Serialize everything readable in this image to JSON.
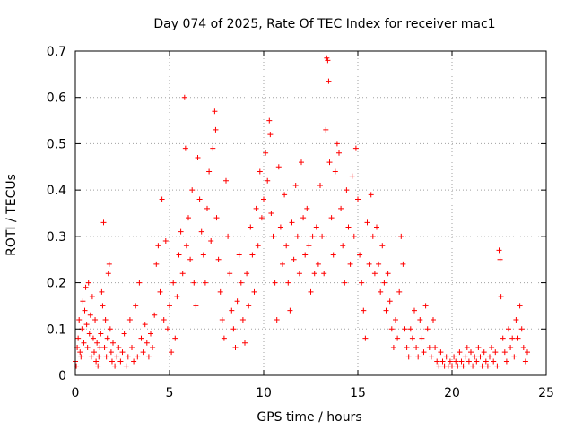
{
  "chart_data": {
    "type": "scatter",
    "title": "Day 074 of 2025, Rate Of TEC Index for receiver mac1",
    "xlabel": "GPS time / hours",
    "ylabel": "ROTI / TECUs",
    "xlim": [
      0,
      25
    ],
    "ylim": [
      0,
      0.7
    ],
    "x_ticks": [
      0,
      5,
      10,
      15,
      20,
      25
    ],
    "y_ticks": [
      0,
      0.1,
      0.2,
      0.3,
      0.4,
      0.5,
      0.6,
      0.7
    ],
    "x_tick_labels": [
      "0",
      "5",
      "10",
      "15",
      "20",
      "25"
    ],
    "y_tick_labels": [
      "0",
      "0.1",
      "0.2",
      "0.3",
      "0.4",
      "0.5",
      "0.6",
      "0.7"
    ],
    "grid": true,
    "marker": "plus",
    "series_color": "#ff0000",
    "points": [
      [
        0.0,
        0.03
      ],
      [
        0.05,
        0.02
      ],
      [
        0.1,
        0.06
      ],
      [
        0.15,
        0.08
      ],
      [
        0.2,
        0.12
      ],
      [
        0.25,
        0.05
      ],
      [
        0.3,
        0.04
      ],
      [
        0.35,
        0.1
      ],
      [
        0.4,
        0.16
      ],
      [
        0.45,
        0.07
      ],
      [
        0.5,
        0.14
      ],
      [
        0.55,
        0.19
      ],
      [
        0.6,
        0.11
      ],
      [
        0.65,
        0.06
      ],
      [
        0.7,
        0.2
      ],
      [
        0.75,
        0.09
      ],
      [
        0.8,
        0.13
      ],
      [
        0.85,
        0.04
      ],
      [
        0.9,
        0.17
      ],
      [
        0.95,
        0.08
      ],
      [
        1.0,
        0.05
      ],
      [
        1.05,
        0.12
      ],
      [
        1.1,
        0.03
      ],
      [
        1.15,
        0.07
      ],
      [
        1.2,
        0.02
      ],
      [
        1.25,
        0.04
      ],
      [
        1.3,
        0.06
      ],
      [
        1.35,
        0.09
      ],
      [
        1.4,
        0.18
      ],
      [
        1.45,
        0.15
      ],
      [
        1.5,
        0.33
      ],
      [
        1.55,
        0.06
      ],
      [
        1.6,
        0.12
      ],
      [
        1.65,
        0.04
      ],
      [
        1.7,
        0.08
      ],
      [
        1.75,
        0.22
      ],
      [
        1.8,
        0.24
      ],
      [
        1.85,
        0.1
      ],
      [
        1.9,
        0.05
      ],
      [
        1.95,
        0.03
      ],
      [
        2.0,
        0.07
      ],
      [
        2.1,
        0.02
      ],
      [
        2.2,
        0.04
      ],
      [
        2.3,
        0.06
      ],
      [
        2.4,
        0.03
      ],
      [
        2.5,
        0.05
      ],
      [
        2.6,
        0.09
      ],
      [
        2.7,
        0.02
      ],
      [
        2.8,
        0.04
      ],
      [
        2.9,
        0.12
      ],
      [
        3.0,
        0.06
      ],
      [
        3.1,
        0.03
      ],
      [
        3.2,
        0.15
      ],
      [
        3.3,
        0.04
      ],
      [
        3.4,
        0.2
      ],
      [
        3.5,
        0.08
      ],
      [
        3.6,
        0.05
      ],
      [
        3.7,
        0.11
      ],
      [
        3.8,
        0.07
      ],
      [
        3.9,
        0.04
      ],
      [
        4.0,
        0.09
      ],
      [
        4.1,
        0.06
      ],
      [
        4.2,
        0.13
      ],
      [
        4.3,
        0.24
      ],
      [
        4.4,
        0.28
      ],
      [
        4.5,
        0.18
      ],
      [
        4.6,
        0.38
      ],
      [
        4.7,
        0.12
      ],
      [
        4.8,
        0.29
      ],
      [
        4.9,
        0.1
      ],
      [
        5.0,
        0.15
      ],
      [
        5.1,
        0.05
      ],
      [
        5.2,
        0.2
      ],
      [
        5.3,
        0.08
      ],
      [
        5.4,
        0.17
      ],
      [
        5.5,
        0.26
      ],
      [
        5.6,
        0.31
      ],
      [
        5.7,
        0.22
      ],
      [
        5.8,
        0.6
      ],
      [
        5.85,
        0.49
      ],
      [
        5.9,
        0.28
      ],
      [
        6.0,
        0.34
      ],
      [
        6.1,
        0.25
      ],
      [
        6.2,
        0.4
      ],
      [
        6.3,
        0.2
      ],
      [
        6.4,
        0.15
      ],
      [
        6.5,
        0.47
      ],
      [
        6.6,
        0.38
      ],
      [
        6.7,
        0.31
      ],
      [
        6.8,
        0.26
      ],
      [
        6.9,
        0.2
      ],
      [
        7.0,
        0.36
      ],
      [
        7.1,
        0.44
      ],
      [
        7.2,
        0.29
      ],
      [
        7.3,
        0.49
      ],
      [
        7.4,
        0.57
      ],
      [
        7.45,
        0.53
      ],
      [
        7.5,
        0.34
      ],
      [
        7.6,
        0.25
      ],
      [
        7.7,
        0.18
      ],
      [
        7.8,
        0.12
      ],
      [
        7.9,
        0.08
      ],
      [
        8.0,
        0.42
      ],
      [
        8.1,
        0.3
      ],
      [
        8.2,
        0.22
      ],
      [
        8.3,
        0.14
      ],
      [
        8.4,
        0.1
      ],
      [
        8.5,
        0.06
      ],
      [
        8.6,
        0.16
      ],
      [
        8.7,
        0.26
      ],
      [
        8.8,
        0.2
      ],
      [
        8.9,
        0.12
      ],
      [
        9.0,
        0.07
      ],
      [
        9.1,
        0.22
      ],
      [
        9.2,
        0.15
      ],
      [
        9.3,
        0.32
      ],
      [
        9.4,
        0.26
      ],
      [
        9.5,
        0.18
      ],
      [
        9.6,
        0.36
      ],
      [
        9.7,
        0.28
      ],
      [
        9.8,
        0.44
      ],
      [
        9.9,
        0.34
      ],
      [
        10.0,
        0.38
      ],
      [
        10.1,
        0.48
      ],
      [
        10.2,
        0.42
      ],
      [
        10.3,
        0.55
      ],
      [
        10.35,
        0.52
      ],
      [
        10.4,
        0.35
      ],
      [
        10.5,
        0.3
      ],
      [
        10.6,
        0.2
      ],
      [
        10.7,
        0.12
      ],
      [
        10.8,
        0.45
      ],
      [
        10.9,
        0.32
      ],
      [
        11.0,
        0.24
      ],
      [
        11.1,
        0.39
      ],
      [
        11.2,
        0.28
      ],
      [
        11.3,
        0.2
      ],
      [
        11.4,
        0.14
      ],
      [
        11.5,
        0.33
      ],
      [
        11.6,
        0.25
      ],
      [
        11.7,
        0.41
      ],
      [
        11.8,
        0.3
      ],
      [
        11.9,
        0.22
      ],
      [
        12.0,
        0.46
      ],
      [
        12.1,
        0.34
      ],
      [
        12.2,
        0.26
      ],
      [
        12.3,
        0.36
      ],
      [
        12.4,
        0.28
      ],
      [
        12.5,
        0.18
      ],
      [
        12.6,
        0.3
      ],
      [
        12.7,
        0.22
      ],
      [
        12.8,
        0.32
      ],
      [
        12.9,
        0.24
      ],
      [
        13.0,
        0.41
      ],
      [
        13.1,
        0.3
      ],
      [
        13.2,
        0.22
      ],
      [
        13.3,
        0.53
      ],
      [
        13.35,
        0.685
      ],
      [
        13.4,
        0.68
      ],
      [
        13.45,
        0.635
      ],
      [
        13.5,
        0.46
      ],
      [
        13.6,
        0.34
      ],
      [
        13.7,
        0.26
      ],
      [
        13.8,
        0.44
      ],
      [
        13.9,
        0.5
      ],
      [
        14.0,
        0.48
      ],
      [
        14.1,
        0.36
      ],
      [
        14.2,
        0.28
      ],
      [
        14.3,
        0.2
      ],
      [
        14.4,
        0.4
      ],
      [
        14.5,
        0.32
      ],
      [
        14.6,
        0.24
      ],
      [
        14.7,
        0.43
      ],
      [
        14.8,
        0.3
      ],
      [
        14.9,
        0.49
      ],
      [
        15.0,
        0.38
      ],
      [
        15.1,
        0.26
      ],
      [
        15.2,
        0.2
      ],
      [
        15.3,
        0.14
      ],
      [
        15.4,
        0.08
      ],
      [
        15.5,
        0.33
      ],
      [
        15.6,
        0.24
      ],
      [
        15.7,
        0.39
      ],
      [
        15.8,
        0.3
      ],
      [
        15.9,
        0.22
      ],
      [
        16.0,
        0.32
      ],
      [
        16.1,
        0.24
      ],
      [
        16.2,
        0.18
      ],
      [
        16.3,
        0.28
      ],
      [
        16.4,
        0.2
      ],
      [
        16.5,
        0.14
      ],
      [
        16.6,
        0.22
      ],
      [
        16.7,
        0.16
      ],
      [
        16.8,
        0.1
      ],
      [
        16.9,
        0.06
      ],
      [
        17.0,
        0.12
      ],
      [
        17.1,
        0.08
      ],
      [
        17.2,
        0.18
      ],
      [
        17.3,
        0.3
      ],
      [
        17.4,
        0.24
      ],
      [
        17.5,
        0.1
      ],
      [
        17.6,
        0.06
      ],
      [
        17.7,
        0.04
      ],
      [
        17.8,
        0.1
      ],
      [
        17.9,
        0.08
      ],
      [
        18.0,
        0.14
      ],
      [
        18.1,
        0.06
      ],
      [
        18.2,
        0.04
      ],
      [
        18.3,
        0.12
      ],
      [
        18.4,
        0.08
      ],
      [
        18.5,
        0.05
      ],
      [
        18.6,
        0.15
      ],
      [
        18.7,
        0.1
      ],
      [
        18.8,
        0.06
      ],
      [
        18.9,
        0.04
      ],
      [
        19.0,
        0.12
      ],
      [
        19.1,
        0.06
      ],
      [
        19.2,
        0.03
      ],
      [
        19.3,
        0.02
      ],
      [
        19.4,
        0.05
      ],
      [
        19.5,
        0.03
      ],
      [
        19.6,
        0.02
      ],
      [
        19.7,
        0.04
      ],
      [
        19.8,
        0.02
      ],
      [
        19.9,
        0.03
      ],
      [
        20.0,
        0.02
      ],
      [
        20.1,
        0.04
      ],
      [
        20.2,
        0.03
      ],
      [
        20.3,
        0.02
      ],
      [
        20.4,
        0.05
      ],
      [
        20.5,
        0.03
      ],
      [
        20.6,
        0.02
      ],
      [
        20.7,
        0.04
      ],
      [
        20.8,
        0.06
      ],
      [
        20.9,
        0.03
      ],
      [
        21.0,
        0.05
      ],
      [
        21.1,
        0.02
      ],
      [
        21.2,
        0.04
      ],
      [
        21.3,
        0.03
      ],
      [
        21.4,
        0.06
      ],
      [
        21.5,
        0.04
      ],
      [
        21.6,
        0.02
      ],
      [
        21.7,
        0.05
      ],
      [
        21.8,
        0.03
      ],
      [
        21.9,
        0.02
      ],
      [
        22.0,
        0.04
      ],
      [
        22.1,
        0.06
      ],
      [
        22.2,
        0.03
      ],
      [
        22.3,
        0.05
      ],
      [
        22.4,
        0.02
      ],
      [
        22.5,
        0.27
      ],
      [
        22.55,
        0.25
      ],
      [
        22.6,
        0.17
      ],
      [
        22.7,
        0.08
      ],
      [
        22.8,
        0.05
      ],
      [
        22.9,
        0.03
      ],
      [
        23.0,
        0.1
      ],
      [
        23.1,
        0.06
      ],
      [
        23.2,
        0.08
      ],
      [
        23.3,
        0.04
      ],
      [
        23.4,
        0.12
      ],
      [
        23.5,
        0.08
      ],
      [
        23.6,
        0.15
      ],
      [
        23.7,
        0.1
      ],
      [
        23.8,
        0.06
      ],
      [
        23.9,
        0.03
      ],
      [
        24.0,
        0.05
      ]
    ]
  }
}
